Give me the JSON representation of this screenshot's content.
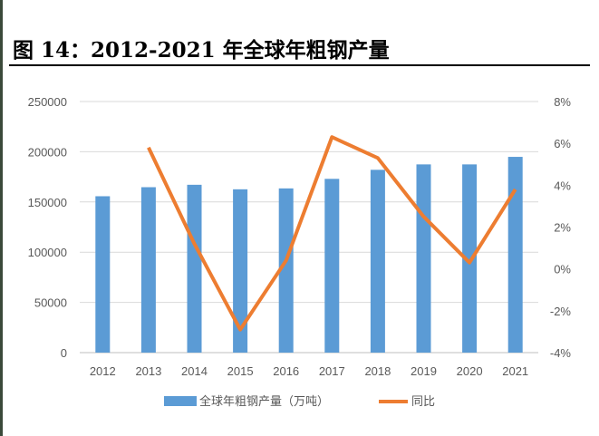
{
  "title": "图 14：2012-2021 年全球年粗钢产量",
  "chart_data": {
    "type": "bar+line",
    "title": "图 14：2012-2021 年全球年粗钢产量",
    "categories": [
      "2012",
      "2013",
      "2014",
      "2015",
      "2016",
      "2017",
      "2018",
      "2019",
      "2020",
      "2021"
    ],
    "series": [
      {
        "name": "全球年粗钢产量（万吨）",
        "type": "bar",
        "axis": "left",
        "color": "#5b9bd5",
        "values": [
          155700,
          164700,
          167100,
          162600,
          163500,
          173000,
          182000,
          187400,
          187400,
          194900
        ]
      },
      {
        "name": "同比",
        "type": "line",
        "axis": "right",
        "color": "#ed7d31",
        "values": [
          null,
          5.8,
          1.2,
          -2.9,
          0.4,
          6.3,
          5.3,
          2.5,
          0.3,
          3.8
        ]
      }
    ],
    "left_axis": {
      "ylim": [
        0,
        250000
      ],
      "ticks": [
        "0",
        "50000",
        "100000",
        "150000",
        "200000",
        "250000"
      ]
    },
    "right_axis": {
      "ylim": [
        -4,
        8
      ],
      "ticks": [
        "-4%",
        "-2%",
        "0%",
        "2%",
        "4%",
        "6%",
        "8%"
      ]
    },
    "grid": true,
    "legend": "bottom"
  }
}
